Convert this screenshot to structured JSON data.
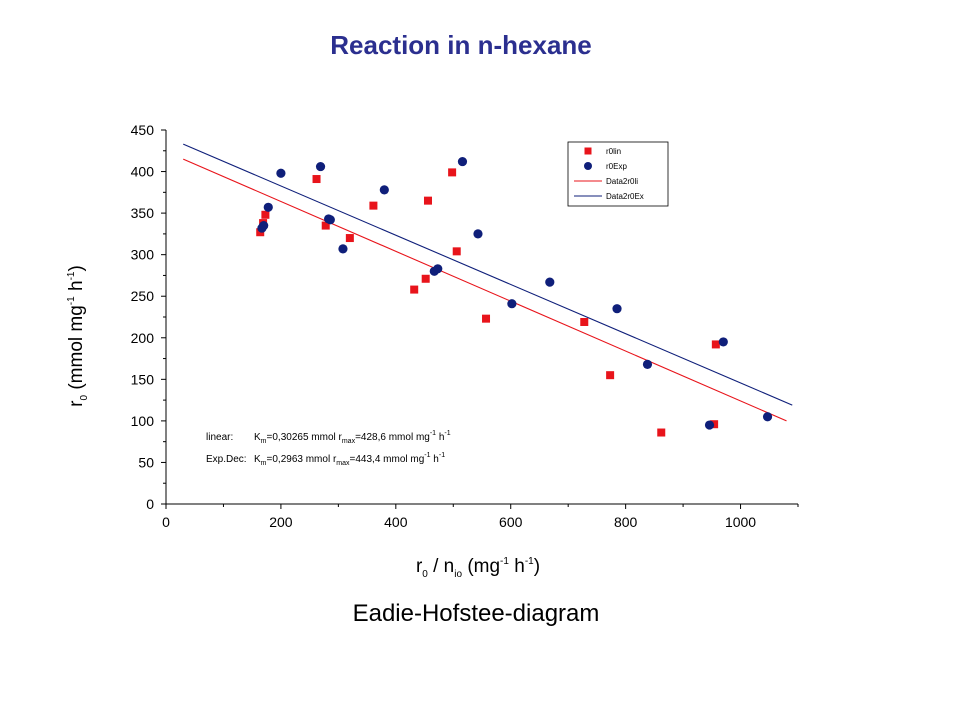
{
  "slide": {
    "title": "Reaction in n-hexane",
    "caption": "Eadie-Hofstee-diagram"
  },
  "chart_data": {
    "type": "scatter",
    "title": "Reaction in n-hexane",
    "xlabel": {
      "main": "r",
      "sub": "0",
      "rest": " / n",
      "sub2": "io",
      "unit_open": " (mg",
      "sup1": "-1",
      "unit_mid": " h",
      "sup2": "-1",
      "unit_close": ")"
    },
    "ylabel": {
      "main": "r",
      "sub": "0",
      "unit_open": " (mmol mg",
      "sup1": "-1",
      "unit_mid": " h",
      "sup2": "-1",
      "unit_close": ")"
    },
    "xlim": [
      0,
      1100
    ],
    "ylim": [
      0,
      450
    ],
    "x_ticks": [
      0,
      200,
      400,
      600,
      800,
      1000
    ],
    "y_ticks": [
      0,
      50,
      100,
      150,
      200,
      250,
      300,
      350,
      400,
      450
    ],
    "grid": false,
    "legend_position": "top-right",
    "series": [
      {
        "name": "r0lin",
        "kind": "points",
        "marker": "square",
        "color": "#e8141b",
        "points": [
          [
            164,
            327
          ],
          [
            169,
            338
          ],
          [
            173,
            348
          ],
          [
            262,
            391
          ],
          [
            278,
            335
          ],
          [
            320,
            320
          ],
          [
            361,
            359
          ],
          [
            432,
            258
          ],
          [
            452,
            271
          ],
          [
            456,
            365
          ],
          [
            498,
            399
          ],
          [
            506,
            304
          ],
          [
            557,
            223
          ],
          [
            728,
            219
          ],
          [
            773,
            155
          ],
          [
            862,
            86
          ],
          [
            954,
            96
          ],
          [
            957,
            192
          ]
        ]
      },
      {
        "name": "r0Exp",
        "kind": "points",
        "marker": "circle",
        "color": "#0f1f7a",
        "points": [
          [
            167,
            332
          ],
          [
            170,
            335
          ],
          [
            178,
            357
          ],
          [
            200,
            398
          ],
          [
            269,
            406
          ],
          [
            283,
            343
          ],
          [
            286,
            342
          ],
          [
            308,
            307
          ],
          [
            380,
            378
          ],
          [
            467,
            280
          ],
          [
            473,
            283
          ],
          [
            516,
            412
          ],
          [
            543,
            325
          ],
          [
            602,
            241
          ],
          [
            668,
            267
          ],
          [
            785,
            235
          ],
          [
            838,
            168
          ],
          [
            946,
            95
          ],
          [
            970,
            195
          ],
          [
            1047,
            105
          ]
        ]
      },
      {
        "name": "Data2r0li",
        "kind": "line",
        "color": "#e8141b",
        "points": [
          [
            30,
            415
          ],
          [
            1080,
            100
          ]
        ]
      },
      {
        "name": "Data2r0Ex",
        "kind": "line",
        "color": "#0f1f7a",
        "points": [
          [
            30,
            433
          ],
          [
            1090,
            119
          ]
        ]
      }
    ],
    "annotations": [
      {
        "label": "linear:",
        "kmLabel": "K",
        "kmSub": "m",
        "kmValue": "=0,30265 mmol r",
        "rSub": "max",
        "rValue": "=428,6 mmol mg",
        "sup1": "-1",
        "mid": " h",
        "sup2": "-1"
      },
      {
        "label": "Exp.Dec:",
        "kmLabel": "K",
        "kmSub": "m",
        "kmValue": "=0,2963 mmol r",
        "rSub": "max",
        "rValue": "=443,4 mmol mg",
        "sup1": "-1",
        "mid": " h",
        "sup2": "-1"
      }
    ]
  }
}
